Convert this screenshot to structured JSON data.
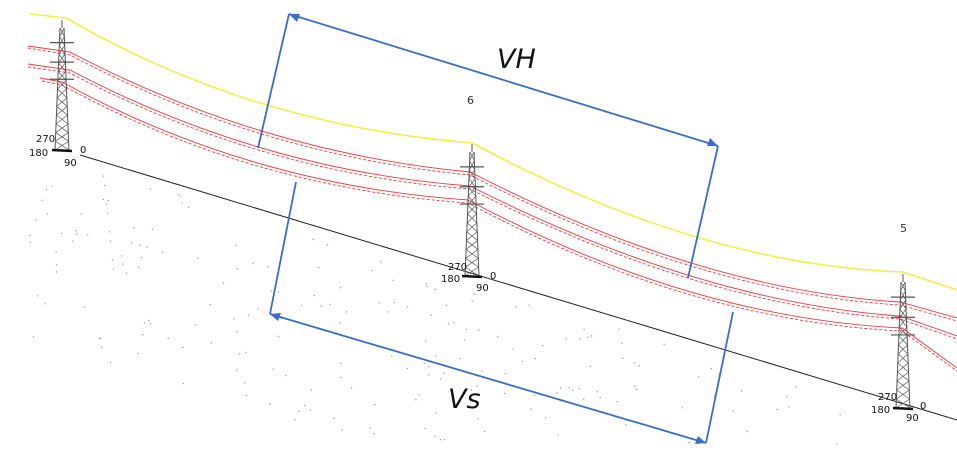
{
  "diagram": {
    "span_labels": {
      "horizontal": "VH",
      "slope": "Vs"
    },
    "towers": [
      {
        "id": "left",
        "number": "",
        "compass": {
          "n": "270",
          "w": "180",
          "e": "0",
          "s": "90"
        }
      },
      {
        "id": "middle",
        "number": "6",
        "compass": {
          "n": "270",
          "w": "180",
          "e": "0",
          "s": "90"
        }
      },
      {
        "id": "right",
        "number": "5",
        "compass": {
          "n": "270",
          "w": "180",
          "e": "0",
          "s": "90"
        }
      }
    ],
    "colors": {
      "earth_wire": "#f2ee4a",
      "conductors": "#ee3a3a",
      "ground_line": "#222222",
      "dimension": "#3a6cc8",
      "tower": "#555555"
    }
  }
}
